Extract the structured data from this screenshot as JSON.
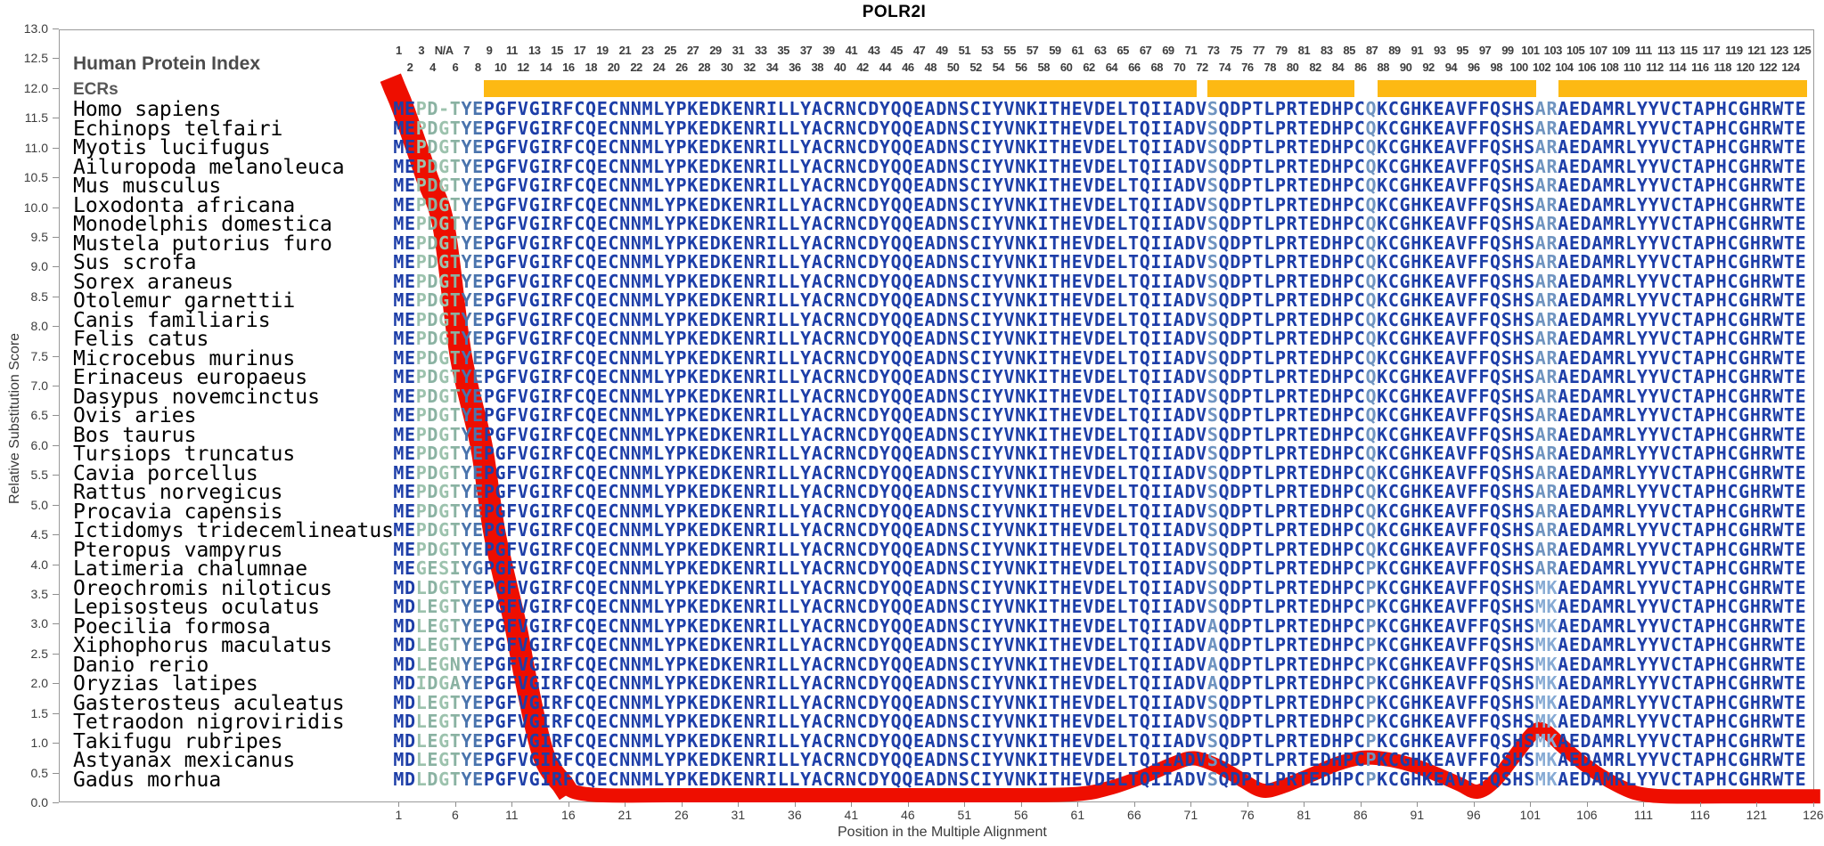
{
  "title": "POLR2I",
  "tracks": {
    "index_label": "Human Protein Index",
    "ecr_label": "ECRs"
  },
  "header": {
    "na_label": "N/A",
    "na_position": 5,
    "num_positions": 125
  },
  "ecr_regions": [
    [
      9,
      71
    ],
    [
      73,
      85
    ],
    [
      88,
      101
    ],
    [
      104,
      125
    ]
  ],
  "y_axis": {
    "label": "Relative Substitution Score",
    "min": 0.0,
    "max": 13.0,
    "step": 0.5
  },
  "x_axis": {
    "label": "Position in the Multiple Alignment",
    "tick_start": 1,
    "tick_step": 5,
    "tick_end": 126
  },
  "colors": {
    "navy": "#1d3ea8",
    "green_light": "#9cc2ad",
    "green_mid": "#8ab2a2",
    "steel": "#4a74ad",
    "light_steel": "#6f94c0",
    "lighter_steel": "#86aad4",
    "red_line": "#ee0e00",
    "ecr_bar": "#fdb913",
    "axis_text": "#3c3c3c",
    "border": "#9a9a9a"
  },
  "alignment": {
    "rows": [
      {
        "species": "Homo sapiens",
        "sequence": "MEPD-TYEPGFVGIRFCQECNNMLYPKEDKENRILLYACRNCDYQQEADNSCIYVNKITHEVDELTQIIADVSQDPTLPRTEDHPCQKCGHKEAVFFQSHSARAEDAMRLYYVCTAPHCGHRWTE"
      },
      {
        "species": "Echinops telfairi",
        "sequence": "MEPDGTYEPGFVGIRFCQECNNMLYPKEDKENRILLYACRNCDYQQEADNSCIYVNKITHEVDELTQIIADVSQDPTLPRTEDHPCQKCGHKEAVFFQSHSARAEDAMRLYYVCTAPHCGHRWTE"
      },
      {
        "species": "Myotis lucifugus",
        "sequence": "MEPDGTYEPGFVGIRFCQECNNMLYPKEDKENRILLYACRNCDYQQEADNSCIYVNKITHEVDELTQIIADVSQDPTLPRTEDHPCQKCGHKEAVFFQSHSARAEDAMRLYYVCTAPHCGHRWTE"
      },
      {
        "species": "Ailuropoda melanoleuca",
        "sequence": "MEPDGTYEPGFVGIRFCQECNNMLYPKEDKENRILLYACRNCDYQQEADNSCIYVNKITHEVDELTQIIADVSQDPTLPRTEDHPCQKCGHKEAVFFQSHSARAEDAMRLYYVCTAPHCGHRWTE"
      },
      {
        "species": "Mus musculus",
        "sequence": "MEPDGTYEPGFVGIRFCQECNNMLYPKEDKENRILLYACRNCDYQQEADNSCIYVNKITHEVDELTQIIADVSQDPTLPRTEDHPCQKCGHKEAVFFQSHSARAEDAMRLYYVCTAPHCGHRWTE"
      },
      {
        "species": "Loxodonta africana",
        "sequence": "MEPDGTYEPGFVGIRFCQECNNMLYPKEDKENRILLYACRNCDYQQEADNSCIYVNKITHEVDELTQIIADVSQDPTLPRTEDHPCQKCGHKEAVFFQSHSARAEDAMRLYYVCTAPHCGHRWTE"
      },
      {
        "species": "Monodelphis domestica",
        "sequence": "MEPDGTYEPGFVGIRFCQECNNMLYPKEDKENRILLYACRNCDYQQEADNSCIYVNKITHEVDELTQIIADVSQDPTLPRTEDHPCQKCGHKEAVFFQSHSARAEDAMRLYYVCTAPHCGHRWTE"
      },
      {
        "species": "Mustela putorius furo",
        "sequence": "MEPDGTYEPGFVGIRFCQECNNMLYPKEDKENRILLYACRNCDYQQEADNSCIYVNKITHEVDELTQIIADVSQDPTLPRTEDHPCQKCGHKEAVFFQSHSARAEDAMRLYYVCTAPHCGHRWTE"
      },
      {
        "species": "Sus scrofa",
        "sequence": "MEPDGTYEPGFVGIRFCQECNNMLYPKEDKENRILLYACRNCDYQQEADNSCIYVNKITHEVDELTQIIADVSQDPTLPRTEDHPCQKCGHKEAVFFQSHSARAEDAMRLYYVCTAPHCGHRWTE"
      },
      {
        "species": "Sorex araneus",
        "sequence": "MEPDGTYEPGFVGIRFCQECNNMLYPKEDKENRILLYACRNCDYQQEADNSCIYVNKITHEVDELTQIIADVSQDPTLPRTEDHPCQKCGHKEAVFFQSHSARAEDAMRLYYVCTAPHCGHRWTE"
      },
      {
        "species": "Otolemur garnettii",
        "sequence": "MEPDGTYEPGFVGIRFCQECNNMLYPKEDKENRILLYACRNCDYQQEADNSCIYVNKITHEVDELTQIIADVSQDPTLPRTEDHPCQKCGHKEAVFFQSHSARAEDAMRLYYVCTAPHCGHRWTE"
      },
      {
        "species": "Canis familiaris",
        "sequence": "MEPDGTYEPGFVGIRFCQECNNMLYPKEDKENRILLYACRNCDYQQEADNSCIYVNKITHEVDELTQIIADVSQDPTLPRTEDHPCQKCGHKEAVFFQSHSARAEDAMRLYYVCTAPHCGHRWTE"
      },
      {
        "species": "Felis catus",
        "sequence": "MEPDGTYEPGFVGIRFCQECNNMLYPKEDKENRILLYACRNCDYQQEADNSCIYVNKITHEVDELTQIIADVSQDPTLPRTEDHPCQKCGHKEAVFFQSHSARAEDAMRLYYVCTAPHCGHRWTE"
      },
      {
        "species": "Microcebus murinus",
        "sequence": "MEPDGTYEPGFVGIRFCQECNNMLYPKEDKENRILLYACRNCDYQQEADNSCIYVNKITHEVDELTQIIADVSQDPTLPRTEDHPCQKCGHKEAVFFQSHSARAEDAMRLYYVCTAPHCGHRWTE"
      },
      {
        "species": "Erinaceus europaeus",
        "sequence": "MEPDGTYEPGFVGIRFCQECNNMLYPKEDKENRILLYACRNCDYQQEADNSCIYVNKITHEVDELTQIIADVSQDPTLPRTEDHPCQKCGHKEAVFFQSHSARAEDAMRLYYVCTAPHCGHRWTE"
      },
      {
        "species": "Dasypus novemcinctus",
        "sequence": "MEPDGTYEPGFVGIRFCQECNNMLYPKEDKENRILLYACRNCDYQQEADNSCIYVNKITHEVDELTQIIADVSQDPTLPRTEDHPCQKCGHKEAVFFQSHSARAEDAMRLYYVCTAPHCGHRWTE"
      },
      {
        "species": "Ovis aries",
        "sequence": "MEPDGTYEPGFVGIRFCQECNNMLYPKEDKENRILLYACRNCDYQQEADNSCIYVNKITHEVDELTQIIADVSQDPTLPRTEDHPCQKCGHKEAVFFQSHSARAEDAMRLYYVCTAPHCGHRWTE"
      },
      {
        "species": "Bos taurus",
        "sequence": "MEPDGTYEPGFVGIRFCQECNNMLYPKEDKENRILLYACRNCDYQQEADNSCIYVNKITHEVDELTQIIADVSQDPTLPRTEDHPCQKCGHKEAVFFQSHSARAEDAMRLYYVCTAPHCGHRWTE"
      },
      {
        "species": "Tursiops truncatus",
        "sequence": "MEPDGTYEPGFVGIRFCQECNNMLYPKEDKENRILLYACRNCDYQQEADNSCIYVNKITHEVDELTQIIADVSQDPTLPRTEDHPCQKCGHKEAVFFQSHSARAEDAMRLYYVCTAPHCGHRWTE"
      },
      {
        "species": "Cavia porcellus",
        "sequence": "MEPDGTYEPGFVGIRFCQECNNMLYPKEDKENRILLYACRNCDYQQEADNSCIYVNKITHEVDELTQIIADVSQDPTLPRTEDHPCQKCGHKEAVFFQSHSARAEDAMRLYYVCTAPHCGHRWTE"
      },
      {
        "species": "Rattus norvegicus",
        "sequence": "MEPDGTYEPGFVGIRFCQECNNMLYPKEDKENRILLYACRNCDYQQEADNSCIYVNKITHEVDELTQIIADVSQDPTLPRTEDHPCQKCGHKEAVFFQSHSARAEDAMRLYYVCTAPHCGHRWTE"
      },
      {
        "species": "Procavia capensis",
        "sequence": "MEPDGTYEPGFVGIRFCQECNNMLYPKEDKENRILLYACRNCDYQQEADNSCIYVNKITHEVDELTQIIADVSQDPTLPRTEDHPCQKCGHKEAVFFQSHSARAEDAMRLYYVCTAPHCGHRWTE"
      },
      {
        "species": "Ictidomys tridecemlineatus",
        "sequence": "MEPDGTYEPGFVGIRFCQECNNMLYPKEDKENRILLYACRNCDYQQEADNSCIYVNKITHEVDELTQIIADVSQDPTLPRTEDHPCQKCGHKEAVFFQSHSARAEDAMRLYYVCTAPHCGHRWTE"
      },
      {
        "species": "Pteropus vampyrus",
        "sequence": "MEPDGTYEPGFVGIRFCQECNNMLYPKEDKENRILLYACRNCDYQQEADNSCIYVNKITHEVDELTQIIADVSQDPTLPRTEDHPCQKCGHKEAVFFQSHSARAEDAMRLYYVCTAPHCGHRWTE"
      },
      {
        "species": "Latimeria chalumnae",
        "sequence": "MEGESIYGPGFVGIRFCQECNNMLYPKEDKENRILLYACRNCDYQQEADNSCIYVNKITHEVDELTQIIADVSQDPTLPRTEDHPCPKCGHKEAVFFQSHSARAEDAMRLYYVCTAPHCGHRWTE"
      },
      {
        "species": "Oreochromis niloticus",
        "sequence": "MDLDGTYEPGFVGIRFCQECNNMLYPKEDKENRILLYACRNCDYQQEADNSCIYVNKITHEVDELTQIIADVSQDPTLPRTEDHPCPKCGHKEAVFFQSHSMKAEDAMRLYYVCTAPHCGHRWTE"
      },
      {
        "species": "Lepisosteus oculatus",
        "sequence": "MDLEGTYEPGFVGIRFCQECNNMLYPKEDKENRILLYACRNCDYQQEADNSCIYVNKITHEVDELTQIIADVSQDPTLPRTEDHPCPKCGHKEAVFFQSHSMKAEDAMRLYYVCTAPHCGHRWTE"
      },
      {
        "species": "Poecilia formosa",
        "sequence": "MDLEGTYEPGFVGIRFCQECNNMLYPKEDKENRILLYACRNCDYQQEADNSCIYVNKITHEVDELTQIIADVAQDPTLPRTEDHPCPKCGHKEAVFFQSHSMKAEDAMRLYYVCTAPHCGHRWTE"
      },
      {
        "species": "Xiphophorus maculatus",
        "sequence": "MDLEGTYEPGFVGIRFCQECNNMLYPKEDKENRILLYACRNCDYQQEADNSCIYVNKITHEVDELTQIIADVAQDPTLPRTEDHPCPKCGHKEAVFFQSHSMKAEDAMRLYYVCTAPHCGHRWTE"
      },
      {
        "species": "Danio rerio",
        "sequence": "MDLEGNYEPGFVGIRFCQECNNMLYPKEDKENRILLYACRNCDYQQEADNSCIYVNKITHEVDELTQIIADVAQDPTLPRTEDHPCPKCGHKEAVFFQSHSMKAEDAMRLYYVCTAPHCGHRWTE"
      },
      {
        "species": "Oryzias latipes",
        "sequence": "MDIDGAYEPGFVGIRFCQECNNMLYPKEDKENRILLYACRNCDYQQEADNSCIYVNKITHEVDELTQIIADVAQDPTLPRTEDHPCPKCGHKEAVFFQSHSMKAEDAMRLYYVCTAPHCGHRWTE"
      },
      {
        "species": "Gasterosteus aculeatus",
        "sequence": "MDLEGTYEPGFVGIRFCQECNNMLYPKEDKENRILLYACRNCDYQQEADNSCIYVNKITHEVDELTQIIADVSQDPTLPRTEDHPCPKCGHKEAVFFQSHSMKAEDAMRLYYVCTAPHCGHRWTE"
      },
      {
        "species": "Tetraodon nigroviridis",
        "sequence": "MDLEGTYEPGFVGIRFCQECNNMLYPKEDKENRILLYACRNCDYQQEADNSCIYVNKITHEVDELTQIIADVSQDPTLPRTEDHPCPKCGHKEAVFFQSHSMKAEDAMRLYYVCTAPHCGHRWTE"
      },
      {
        "species": "Takifugu rubripes",
        "sequence": "MDLEGTYEPGFVGIRFCQECNNMLYPKEDKENRILLYACRNCDYQQEADNSCIYVNKITHEVDELTQIIADVSQDPTLPRTEDHPCPKCGHKEAVFFQSHSMKAEDAMRLYYVCTAPHCGHRWTE"
      },
      {
        "species": "Astyanax mexicanus",
        "sequence": "MDLEGTYEPGFVGIRFCQECNNMLYPKEDKENRILLYACRNCDYQQEADNSCIYVNKITHEVDELTQIIADVSQDPTLPRTEDHPCPKCGHKEAVFFQSHSMKAEDAMRLYYVCTAPHCGHRWTE"
      },
      {
        "species": "Gadus morhua",
        "sequence": "MDLDGTYEPGFVGIRFCQECNNMLYPKEDKENRILLYACRNCDYQQEADNSCIYVNKITHEVDELTQIIADVSQDPTLPRTEDHPCPKCGHKEAVFFQSHSMKAEDAMRLYYVCTAPHCGHRWTE"
      }
    ]
  },
  "chart_data": {
    "type": "line",
    "title": "POLR2I",
    "xlabel": "Position in the Multiple Alignment",
    "ylabel": "Relative Substitution Score",
    "xlim": [
      1,
      126
    ],
    "ylim": [
      0,
      13
    ],
    "grid": false,
    "series": [
      {
        "name": "Relative Substitution Score",
        "points": [
          [
            0.65,
            12.0
          ],
          [
            1.5,
            11.6
          ],
          [
            3.5,
            10.5
          ],
          [
            5.0,
            9.66
          ],
          [
            6.5,
            7.5
          ],
          [
            8.3,
            6.0
          ],
          [
            9.5,
            4.5
          ],
          [
            11.3,
            3.0
          ],
          [
            12.2,
            2.1
          ],
          [
            13.8,
            0.8
          ],
          [
            15.5,
            0.3
          ],
          [
            18,
            0.13
          ],
          [
            25,
            0.12
          ],
          [
            35,
            0.12
          ],
          [
            45,
            0.12
          ],
          [
            55,
            0.12
          ],
          [
            61,
            0.14
          ],
          [
            64,
            0.25
          ],
          [
            67,
            0.45
          ],
          [
            69.5,
            0.65
          ],
          [
            71.3,
            0.74
          ],
          [
            73.5,
            0.6
          ],
          [
            75.5,
            0.38
          ],
          [
            77.3,
            0.2
          ],
          [
            79,
            0.26
          ],
          [
            81.5,
            0.45
          ],
          [
            84,
            0.65
          ],
          [
            86.2,
            0.75
          ],
          [
            88.5,
            0.72
          ],
          [
            91,
            0.6
          ],
          [
            93,
            0.45
          ],
          [
            94.8,
            0.3
          ],
          [
            96.3,
            0.18
          ],
          [
            97.8,
            0.35
          ],
          [
            99.5,
            0.75
          ],
          [
            101.3,
            1.18
          ],
          [
            102.3,
            1.2
          ],
          [
            103.8,
            0.95
          ],
          [
            105.5,
            0.68
          ],
          [
            107.2,
            0.45
          ],
          [
            108.8,
            0.28
          ],
          [
            110.5,
            0.15
          ],
          [
            113,
            0.1
          ],
          [
            118,
            0.1
          ],
          [
            126,
            0.1
          ]
        ]
      }
    ]
  }
}
